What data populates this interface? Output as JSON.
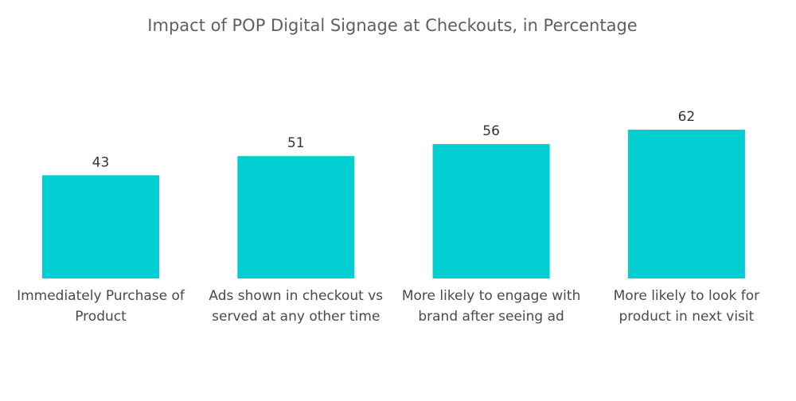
{
  "chart_data": {
    "type": "bar",
    "title": "Impact of POP Digital Signage at Checkouts, in Percentage",
    "xlabel": "",
    "ylabel": "",
    "categories": [
      [
        "Immediately Purchase of",
        "Product"
      ],
      [
        "Ads shown in checkout vs",
        "served at any other time"
      ],
      [
        "More likely to engage with",
        "brand after seeing ad"
      ],
      [
        "More likely to look for",
        "product in next visit"
      ]
    ],
    "values": [
      43,
      51,
      56,
      62
    ],
    "ylim": [
      0,
      62
    ],
    "grid": false,
    "legend": "none",
    "colors": {
      "bar": "#00CED1",
      "title": "#5f5f5f",
      "value_label": "#333333",
      "category_label": "#4a4a4a"
    }
  }
}
